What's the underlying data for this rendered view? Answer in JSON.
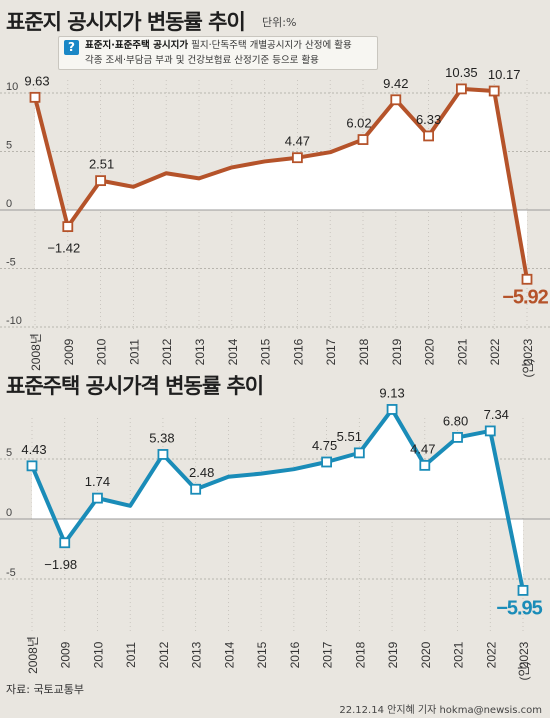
{
  "chart_data": [
    {
      "type": "line",
      "title": "표준지 공시지가 변동률 추이",
      "unit_label": "단위:%",
      "note": {
        "bold": "표준지·표준주택 공시지가",
        "line1": "필지·단독주택 개별공시지가 산정에 활용",
        "line2": "각종 조세·부담금 부과 및 건강보험료 산정기준 등으로 활용"
      },
      "x": [
        "2008년",
        "2009",
        "2010",
        "2011",
        "2012",
        "2013",
        "2014",
        "2015",
        "2016",
        "2017",
        "2018",
        "2019",
        "2020",
        "2021",
        "2022",
        "2023"
      ],
      "x_sub_2023": "(안)",
      "values": [
        9.63,
        -1.42,
        2.51,
        1.98,
        3.14,
        2.7,
        3.64,
        4.15,
        4.47,
        4.94,
        6.02,
        9.42,
        6.33,
        10.35,
        10.17,
        -5.92
      ],
      "labels": {
        "0": "9.63",
        "1": "−1.42",
        "2": "2.51",
        "8": "4.47",
        "10": "6.02",
        "11": "9.42",
        "12": "6.33",
        "13": "10.35",
        "14": "10.17",
        "15": "−5.92"
      },
      "yticks": [
        "10",
        "5",
        "0",
        "-5",
        "-10"
      ],
      "ytick_values": [
        10,
        5,
        0,
        -5,
        -10
      ],
      "ylim": [
        -10,
        12
      ],
      "color": "#b5532a"
    },
    {
      "type": "line",
      "title": "표준주택 공시가격 변동률 추이",
      "x": [
        "2008년",
        "2009",
        "2010",
        "2011",
        "2012",
        "2013",
        "2014",
        "2015",
        "2016",
        "2017",
        "2018",
        "2019",
        "2020",
        "2021",
        "2022",
        "2023"
      ],
      "x_sub_2023": "(안)",
      "values": [
        4.43,
        -1.98,
        1.74,
        1.1,
        5.38,
        2.48,
        3.52,
        3.78,
        4.15,
        4.75,
        5.51,
        9.13,
        4.47,
        6.8,
        7.34,
        -5.95
      ],
      "labels": {
        "0": "4.43",
        "1": "−1.98",
        "2": "1.74",
        "4": "5.38",
        "5": "2.48",
        "9": "4.75",
        "10": "5.51",
        "11": "9.13",
        "12": "4.47",
        "13": "6.80",
        "14": "7.34",
        "15": "−5.95"
      },
      "yticks": [
        "5",
        "0",
        "-5"
      ],
      "ytick_values": [
        5,
        0,
        -5
      ],
      "ylim": [
        -9,
        10
      ],
      "color": "#1a8cb8"
    }
  ],
  "source": "자료: 국토교통부",
  "credit": "22.12.14 안지혜 기자 hokma@newsis.com"
}
